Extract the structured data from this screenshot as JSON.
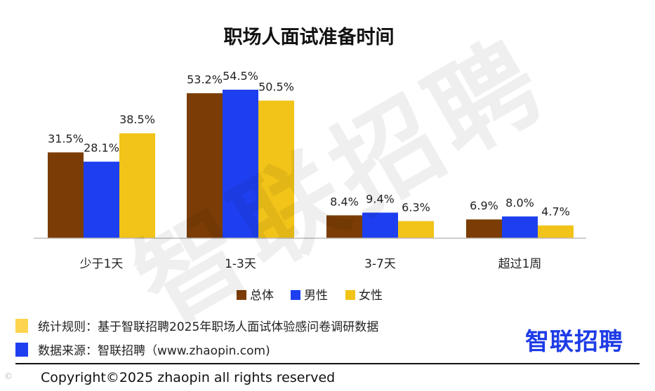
{
  "chart_data": {
    "type": "bar",
    "title": "职场人面试准备时间",
    "categories": [
      "少于1天",
      "1-3天",
      "3-7天",
      "超过1周"
    ],
    "series": [
      {
        "name": "总体",
        "color": "#7b3d05",
        "values": [
          31.5,
          53.2,
          8.4,
          6.9
        ],
        "labels": [
          "31.5%",
          "53.2%",
          "8.4%",
          "6.9%"
        ]
      },
      {
        "name": "男性",
        "color": "#1e3ff0",
        "values": [
          28.1,
          54.5,
          9.4,
          8.0
        ],
        "labels": [
          "28.1%",
          "54.5%",
          "9.4%",
          "8.0%"
        ]
      },
      {
        "name": "女性",
        "color": "#f2c318",
        "values": [
          38.5,
          50.5,
          6.3,
          4.7
        ],
        "labels": [
          "38.5%",
          "50.5%",
          "6.3%",
          "4.7%"
        ]
      }
    ],
    "legend_position": "bottom",
    "ylim": [
      0,
      54.5
    ],
    "grid": false
  },
  "watermark": "智联招聘",
  "notes": {
    "rule_label": "统计规则：基于智联招聘2025年职场人面试体验感问卷调研数据",
    "source_label": "数据来源：智联招聘（www.zhaopin.com)",
    "rule_color": "#fdd44e",
    "source_color": "#1e3ff0"
  },
  "brand": {
    "logo_text": "智联招聘",
    "color": "#1e3ce6"
  },
  "footer": {
    "copyright": "Copyright©2025 zhaopin all rights reserved"
  }
}
